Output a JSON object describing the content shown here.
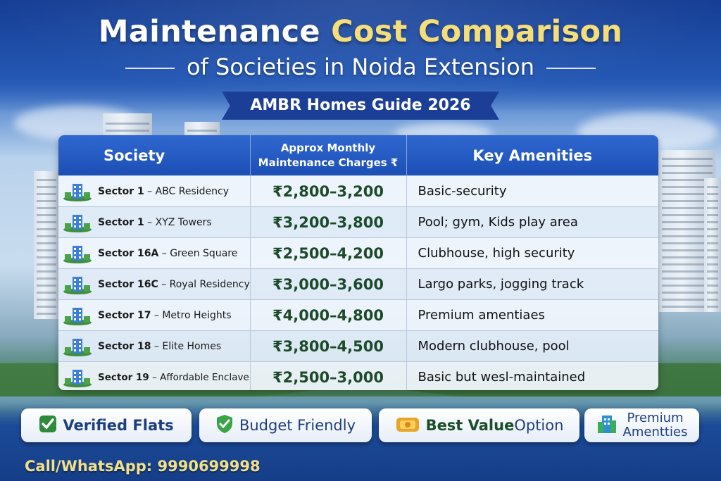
{
  "header": {
    "title_main": "Maintenance",
    "title_accent": "Cost Comparison",
    "subtitle": "of Societies in Noida Extension",
    "ribbon": "AMBR Homes Guide 2026"
  },
  "table": {
    "columns": [
      "Society",
      "Approx Monthly",
      "Maintenance Charges ₹",
      "Key Amenities"
    ],
    "rows": [
      {
        "sector": "Sector 1",
        "name": "– ABC Residency",
        "cost": "₹2,800–3,200",
        "amenities": "Basic-security"
      },
      {
        "sector": "Sector 1",
        "name": "– XYZ Towers",
        "cost": "₹3,200–3,800",
        "amenities": "Pool; gym, Kids play area"
      },
      {
        "sector": "Sector 16A",
        "name": "– Green Square",
        "cost": "₹2,500–4,200",
        "amenities": "Clubhouse, high security"
      },
      {
        "sector": "Sector 16C",
        "name": "– Royal Residency",
        "cost": "₹3,000–3,600",
        "amenities": "Largo parks, jogging track"
      },
      {
        "sector": "Sector 17",
        "name": "– Metro Heights",
        "cost": "₹4,000–4,800",
        "amenities": "Premium amentiaes"
      },
      {
        "sector": "Sector 18",
        "name": "– Elite Homes",
        "cost": "₹3,800–4,500",
        "amenities": "Modern clubhouse, pool"
      },
      {
        "sector": "Sector 19",
        "name": "– Affordable Enclave",
        "cost": "₹2,500–3,000",
        "amenities": "Basic but wesl-maintained"
      }
    ]
  },
  "badges": [
    {
      "label": "Verified Flats",
      "icon": "check-icon"
    },
    {
      "label": "Budget Friendly",
      "icon": "shield-check-icon"
    },
    {
      "label_bold": "Best Value",
      "label_rest": " Option",
      "icon": "coin-icon"
    },
    {
      "line1": "Premium",
      "line2": "Amentties",
      "icon": "building-icon"
    }
  ],
  "footer": {
    "call": "Call/WhatsApp: 9990699998"
  },
  "colors": {
    "accent_gold": "#f5de7a",
    "header_blue": "#1c4fb5",
    "cost_green": "#1c4a2a"
  }
}
